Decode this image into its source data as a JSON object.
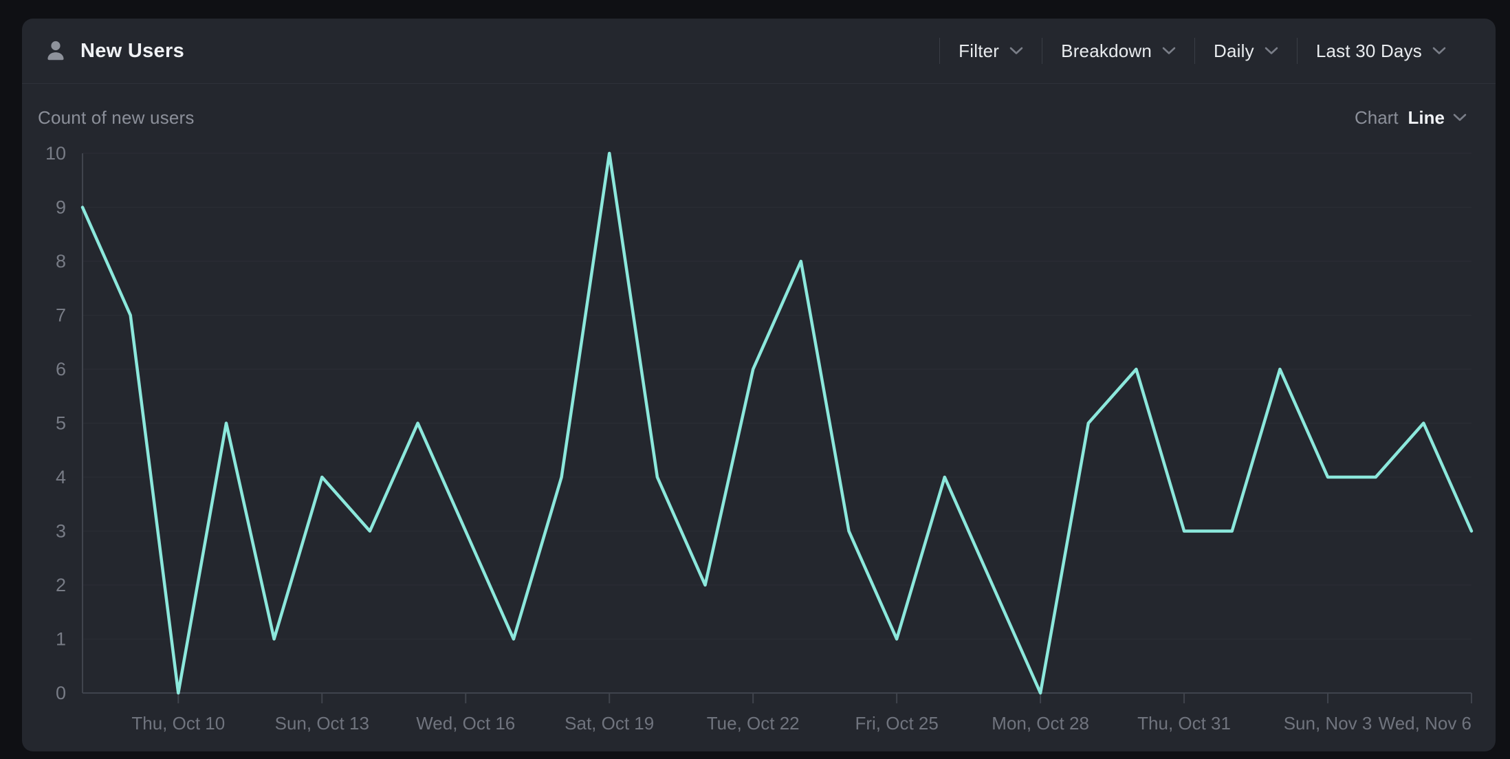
{
  "header": {
    "title": "New Users",
    "controls": [
      {
        "id": "filter",
        "label": "Filter"
      },
      {
        "id": "breakdown",
        "label": "Breakdown"
      },
      {
        "id": "interval",
        "label": "Daily"
      },
      {
        "id": "date-range",
        "label": "Last 30 Days"
      }
    ]
  },
  "subheader": {
    "metric_label": "Count of new users",
    "chart_label": "Chart",
    "chart_type": "Line"
  },
  "colors": {
    "page_bg": "#0f1014",
    "card_bg": "#24272e",
    "header_border": "#2f323a",
    "grid": "#2b2e35",
    "axis": "#40444d",
    "y_label_text": "#787c86",
    "x_label_text": "#70747e",
    "text_primary": "#f0f2f5",
    "text_muted": "#8c909a",
    "line": "#8ce8dc"
  },
  "chart_data": {
    "type": "line",
    "title": "Count of new users",
    "xlabel": "",
    "ylabel": "",
    "ylim": [
      0,
      10
    ],
    "grid": true,
    "legend": "none",
    "num_points": 30,
    "values": [
      9,
      7,
      0,
      5,
      1,
      4,
      3,
      5,
      3,
      1,
      4,
      10,
      4,
      2,
      6,
      8,
      3,
      1,
      4,
      2,
      0,
      5,
      6,
      3,
      3,
      6,
      4,
      4,
      5,
      3
    ],
    "x_tick_indices": [
      2,
      5,
      8,
      11,
      14,
      17,
      20,
      23,
      26,
      29
    ],
    "x_tick_labels": [
      "Thu, Oct 10",
      "Sun, Oct 13",
      "Wed, Oct 16",
      "Sat, Oct 19",
      "Tue, Oct 22",
      "Fri, Oct 25",
      "Mon, Oct 28",
      "Thu, Oct 31",
      "Sun, Nov 3",
      "Wed, Nov 6"
    ],
    "y_ticks": [
      0,
      1,
      2,
      3,
      4,
      5,
      6,
      7,
      8,
      9,
      10
    ],
    "line_color": "#8ce8dc"
  }
}
